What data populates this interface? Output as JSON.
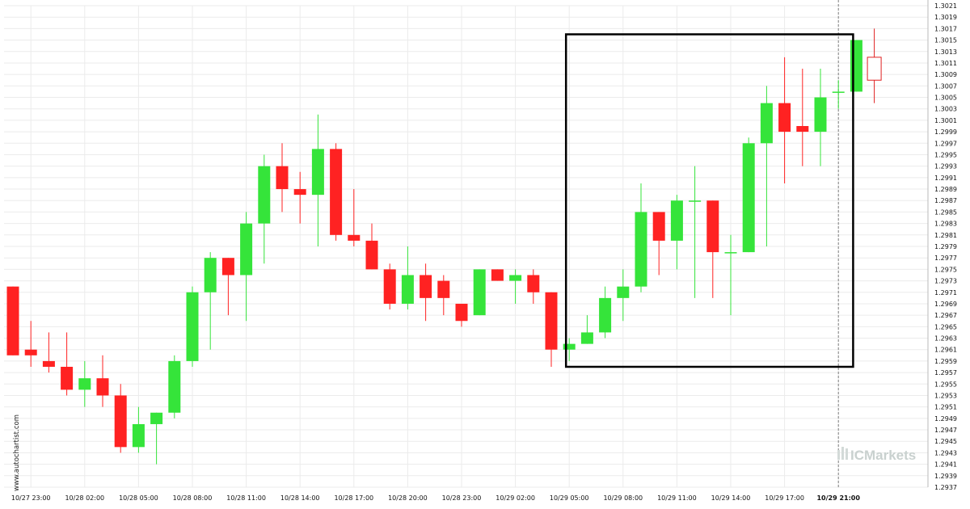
{
  "watermark": {
    "site": "www.autochartist.com",
    "brand": "ICMarkets"
  },
  "colors": {
    "bull": "#35e43a",
    "bear": "#ff2222",
    "grid": "#ebebeb",
    "axis": "#b8b8b8",
    "box": "#000000",
    "marker": "#7f7f7f",
    "last_candle": "#e02020"
  },
  "chart_data": {
    "type": "candlestick",
    "ylim": [
      1.2937,
      1.3021
    ],
    "y_ticks": [
      "1.3021",
      "1.3019",
      "1.3017",
      "1.3015",
      "1.3013",
      "1.3011",
      "1.3009",
      "1.3007",
      "1.3005",
      "1.3003",
      "1.3001",
      "1.2999",
      "1.2997",
      "1.2995",
      "1.2993",
      "1.2991",
      "1.2989",
      "1.2987",
      "1.2985",
      "1.2983",
      "1.2981",
      "1.2979",
      "1.2977",
      "1.2975",
      "1.2973",
      "1.2971",
      "1.2969",
      "1.2967",
      "1.2965",
      "1.2963",
      "1.2961",
      "1.2959",
      "1.2957",
      "1.2955",
      "1.2953",
      "1.2951",
      "1.2949",
      "1.2947",
      "1.2945",
      "1.2943",
      "1.2941",
      "1.2939",
      "1.2937"
    ],
    "x_ticks": [
      {
        "index": 1,
        "label": "10/27 23:00"
      },
      {
        "index": 4,
        "label": "10/28 02:00"
      },
      {
        "index": 7,
        "label": "10/28 05:00"
      },
      {
        "index": 10,
        "label": "10/28 08:00"
      },
      {
        "index": 13,
        "label": "10/28 11:00"
      },
      {
        "index": 16,
        "label": "10/28 14:00"
      },
      {
        "index": 19,
        "label": "10/28 17:00"
      },
      {
        "index": 22,
        "label": "10/28 20:00"
      },
      {
        "index": 25,
        "label": "10/28 23:00"
      },
      {
        "index": 28,
        "label": "10/29 02:00"
      },
      {
        "index": 31,
        "label": "10/29 05:00"
      },
      {
        "index": 34,
        "label": "10/29 08:00"
      },
      {
        "index": 37,
        "label": "10/29 11:00"
      },
      {
        "index": 40,
        "label": "10/29 14:00"
      },
      {
        "index": 43,
        "label": "10/29 17:00"
      },
      {
        "index": 46,
        "label": "10/29 21:00",
        "bold": true
      }
    ],
    "candles": [
      {
        "o": 1.2972,
        "h": 1.2972,
        "l": 1.296,
        "c": 1.296
      },
      {
        "o": 1.2961,
        "h": 1.2966,
        "l": 1.2958,
        "c": 1.296
      },
      {
        "o": 1.2959,
        "h": 1.2964,
        "l": 1.2957,
        "c": 1.2958
      },
      {
        "o": 1.2958,
        "h": 1.2964,
        "l": 1.2953,
        "c": 1.2954
      },
      {
        "o": 1.2954,
        "h": 1.2959,
        "l": 1.2951,
        "c": 1.2956
      },
      {
        "o": 1.2956,
        "h": 1.296,
        "l": 1.2951,
        "c": 1.2953
      },
      {
        "o": 1.2953,
        "h": 1.2955,
        "l": 1.2943,
        "c": 1.2944
      },
      {
        "o": 1.2944,
        "h": 1.2951,
        "l": 1.2943,
        "c": 1.2948
      },
      {
        "o": 1.2948,
        "h": 1.295,
        "l": 1.2941,
        "c": 1.295
      },
      {
        "o": 1.295,
        "h": 1.296,
        "l": 1.2949,
        "c": 1.2959
      },
      {
        "o": 1.2959,
        "h": 1.2972,
        "l": 1.2958,
        "c": 1.2971
      },
      {
        "o": 1.2971,
        "h": 1.2978,
        "l": 1.2961,
        "c": 1.2977
      },
      {
        "o": 1.2977,
        "h": 1.2977,
        "l": 1.2967,
        "c": 1.2974
      },
      {
        "o": 1.2974,
        "h": 1.2985,
        "l": 1.2966,
        "c": 1.2983
      },
      {
        "o": 1.2983,
        "h": 1.2995,
        "l": 1.2976,
        "c": 1.2993
      },
      {
        "o": 1.2993,
        "h": 1.2997,
        "l": 1.2985,
        "c": 1.2989
      },
      {
        "o": 1.2989,
        "h": 1.2992,
        "l": 1.2983,
        "c": 1.2988
      },
      {
        "o": 1.2988,
        "h": 1.3002,
        "l": 1.2979,
        "c": 1.2996
      },
      {
        "o": 1.2996,
        "h": 1.2997,
        "l": 1.298,
        "c": 1.2981
      },
      {
        "o": 1.2981,
        "h": 1.2989,
        "l": 1.2979,
        "c": 1.298
      },
      {
        "o": 1.298,
        "h": 1.2983,
        "l": 1.2975,
        "c": 1.2975
      },
      {
        "o": 1.2975,
        "h": 1.2976,
        "l": 1.2968,
        "c": 1.2969
      },
      {
        "o": 1.2969,
        "h": 1.2979,
        "l": 1.2968,
        "c": 1.2974
      },
      {
        "o": 1.2974,
        "h": 1.2976,
        "l": 1.2966,
        "c": 1.297
      },
      {
        "o": 1.2973,
        "h": 1.2974,
        "l": 1.2967,
        "c": 1.297
      },
      {
        "o": 1.2969,
        "h": 1.2969,
        "l": 1.2965,
        "c": 1.2966
      },
      {
        "o": 1.2967,
        "h": 1.2975,
        "l": 1.2967,
        "c": 1.2975
      },
      {
        "o": 1.2975,
        "h": 1.2975,
        "l": 1.2973,
        "c": 1.2973
      },
      {
        "o": 1.2973,
        "h": 1.2975,
        "l": 1.2969,
        "c": 1.2974
      },
      {
        "o": 1.2974,
        "h": 1.2975,
        "l": 1.2969,
        "c": 1.2971
      },
      {
        "o": 1.2971,
        "h": 1.2971,
        "l": 1.2958,
        "c": 1.2961
      },
      {
        "o": 1.2961,
        "h": 1.2963,
        "l": 1.2959,
        "c": 1.2962
      },
      {
        "o": 1.2962,
        "h": 1.2967,
        "l": 1.2962,
        "c": 1.2964
      },
      {
        "o": 1.2964,
        "h": 1.2972,
        "l": 1.2963,
        "c": 1.297
      },
      {
        "o": 1.297,
        "h": 1.2975,
        "l": 1.2966,
        "c": 1.2972
      },
      {
        "o": 1.2972,
        "h": 1.299,
        "l": 1.2971,
        "c": 1.2985
      },
      {
        "o": 1.2985,
        "h": 1.2985,
        "l": 1.2974,
        "c": 1.298
      },
      {
        "o": 1.298,
        "h": 1.2988,
        "l": 1.2975,
        "c": 1.2987
      },
      {
        "o": 1.2987,
        "h": 1.2993,
        "l": 1.297,
        "c": 1.2987
      },
      {
        "o": 1.2987,
        "h": 1.2987,
        "l": 1.297,
        "c": 1.2978
      },
      {
        "o": 1.2978,
        "h": 1.2981,
        "l": 1.2967,
        "c": 1.2978
      },
      {
        "o": 1.2978,
        "h": 1.2998,
        "l": 1.2978,
        "c": 1.2997
      },
      {
        "o": 1.2997,
        "h": 1.3007,
        "l": 1.2979,
        "c": 1.3004
      },
      {
        "o": 1.3004,
        "h": 1.3012,
        "l": 1.299,
        "c": 1.2999
      },
      {
        "o": 1.3,
        "h": 1.301,
        "l": 1.2993,
        "c": 1.2999
      },
      {
        "o": 1.2999,
        "h": 1.301,
        "l": 1.2993,
        "c": 1.3005
      },
      {
        "o": 1.3006,
        "h": 1.3008,
        "l": 1.3003,
        "c": 1.3006
      },
      {
        "o": 1.3006,
        "h": 1.3015,
        "l": 1.3006,
        "c": 1.3015
      },
      {
        "o": 1.3012,
        "h": 1.3017,
        "l": 1.3004,
        "c": 1.3008
      }
    ],
    "highlight_range": {
      "from_index": 31,
      "to_index": 47,
      "low": 1.2958,
      "high": 1.3016
    },
    "current_marker_index": 46,
    "last_candle_hollow": true,
    "grid": true
  }
}
